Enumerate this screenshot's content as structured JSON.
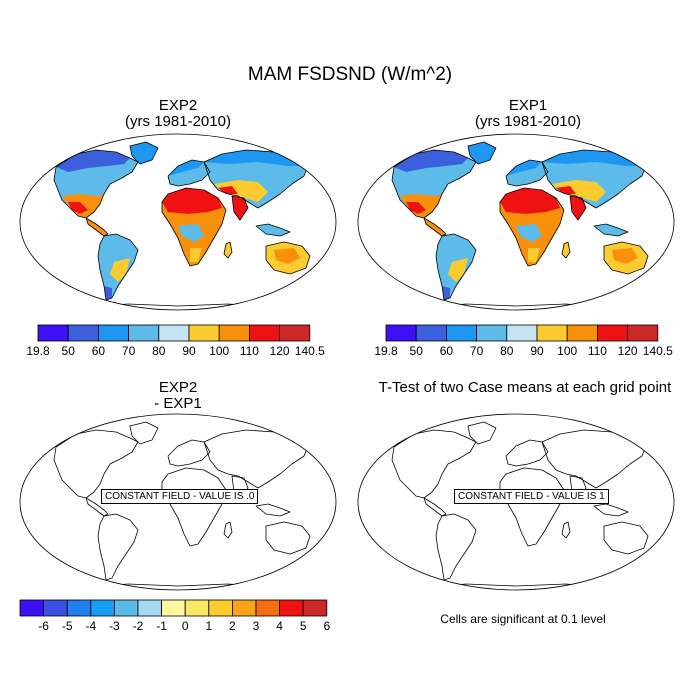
{
  "title": "MAM FSDSND (W/m^2)",
  "panels": [
    {
      "id": "exp2",
      "title": "EXP2",
      "subtitle": "(yrs 1981-2010)"
    },
    {
      "id": "exp1",
      "title": "EXP1",
      "subtitle": "(yrs 1981-2010)"
    },
    {
      "id": "diff",
      "title": "EXP2",
      "subtitle": "- EXP1",
      "note": "CONSTANT FIELD - VALUE IS .0"
    },
    {
      "id": "ttest",
      "title": "T-Test of two Case means at each grid point",
      "note": "CONSTANT FIELD - VALUE IS 1"
    }
  ],
  "colorbar_main": {
    "labels": [
      "19.8",
      "50",
      "60",
      "70",
      "80",
      "90",
      "100",
      "110",
      "120",
      "140.5"
    ],
    "colors": [
      "#3f10f5",
      "#3c60dd",
      "#1d97f1",
      "#5cbbe8",
      "#c4e4f4",
      "#fccb2f",
      "#f8900c",
      "#f01212",
      "#cc2828"
    ]
  },
  "colorbar_diff": {
    "labels": [
      "-6",
      "-5",
      "-4",
      "-3",
      "-2",
      "-1",
      "0",
      "1",
      "2",
      "3",
      "4",
      "5",
      "6"
    ],
    "colors": [
      "#3f10f5",
      "#3c50e6",
      "#1f7fef",
      "#159ff2",
      "#5cbbe8",
      "#a8d8f2",
      "#fef7a0",
      "#fde864",
      "#fccb2f",
      "#f8a21a",
      "#f86c10",
      "#f01212",
      "#cc2828"
    ]
  },
  "significance_note": "Cells are significant at 0.1 level"
}
